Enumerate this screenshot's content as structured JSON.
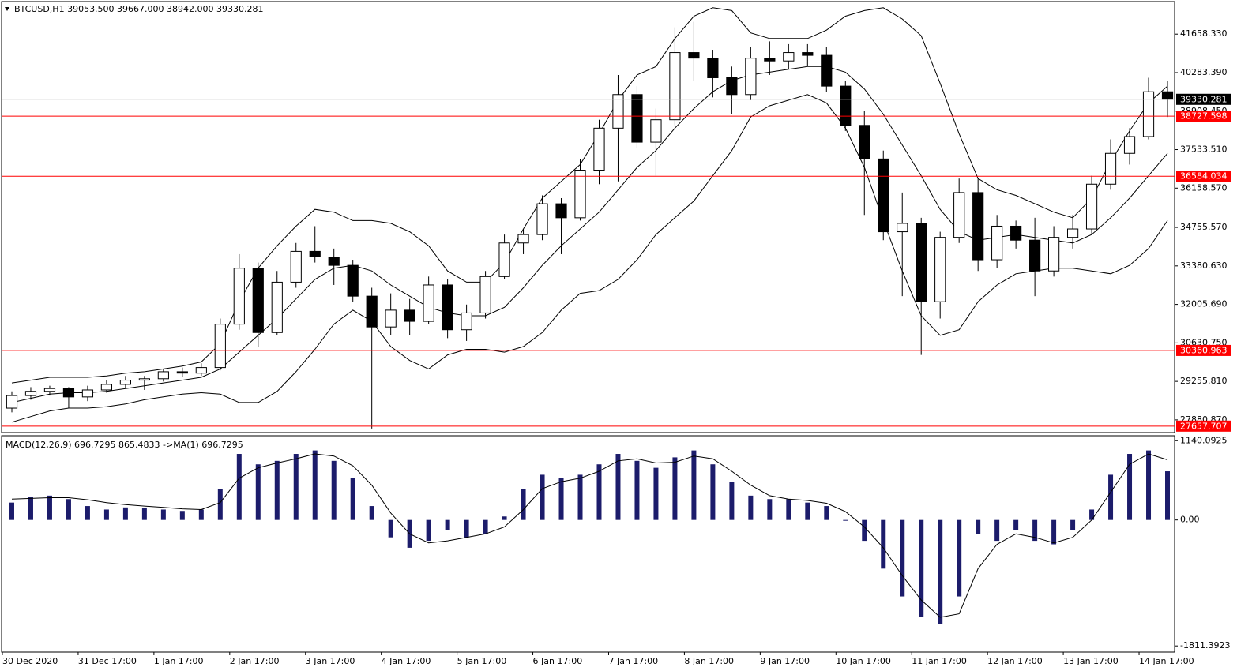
{
  "chart_data": [
    {
      "type": "candlestick",
      "title": "BTCUSD,H1  39053.500 39667.000 38942.000 39330.281",
      "up_color": "#ffffff",
      "down_color": "#000000",
      "x": [
        3,
        9,
        15,
        21,
        27,
        33,
        39,
        45,
        51,
        57,
        63,
        69,
        75,
        81,
        87,
        93,
        99,
        105,
        111,
        117,
        123,
        129,
        135,
        141,
        147,
        153,
        159,
        165,
        171,
        177,
        183,
        189,
        195,
        201,
        207,
        213,
        219,
        225,
        231,
        237,
        243,
        249,
        255,
        261,
        267,
        273,
        279,
        285,
        291,
        297,
        303,
        309,
        315,
        321,
        327,
        333,
        339,
        345,
        351,
        357,
        363,
        369
      ],
      "open": [
        28300,
        28750,
        28900,
        29000,
        28700,
        28950,
        29150,
        29300,
        29350,
        29600,
        29550,
        29750,
        31300,
        33300,
        31000,
        32800,
        33900,
        33700,
        33400,
        32300,
        31200,
        31800,
        31400,
        32700,
        31100,
        31700,
        33000,
        34200,
        34500,
        35600,
        35100,
        36800,
        38300,
        39500,
        37800,
        38600,
        41000,
        40800,
        40100,
        39500,
        40800,
        40700,
        41000,
        40900,
        39800,
        38400,
        37200,
        34600,
        34900,
        32100,
        34400,
        36000,
        33600,
        34800,
        34300,
        33200,
        34400,
        34700,
        36300,
        37400,
        38000,
        39600
      ],
      "high": [
        28900,
        29050,
        29100,
        29050,
        29100,
        29300,
        29450,
        29450,
        29700,
        29750,
        29900,
        31500,
        33800,
        33500,
        33200,
        34200,
        34800,
        34000,
        33600,
        32600,
        32400,
        32200,
        33000,
        32900,
        32000,
        33200,
        34500,
        34700,
        35900,
        35800,
        37200,
        38600,
        40200,
        39800,
        39000,
        41900,
        42100,
        41100,
        40500,
        41200,
        41400,
        41300,
        41300,
        41200,
        40000,
        38900,
        37500,
        36000,
        35100,
        34600,
        36500,
        36500,
        35200,
        35000,
        35100,
        34800,
        35200,
        36600,
        37900,
        38300,
        40100,
        40000
      ],
      "low": [
        28150,
        28600,
        28750,
        28300,
        28550,
        28850,
        29000,
        28950,
        29250,
        29400,
        29450,
        29650,
        31100,
        30500,
        30900,
        32600,
        33500,
        32700,
        32100,
        27570,
        30900,
        30900,
        31300,
        30800,
        30700,
        31500,
        32900,
        33800,
        34300,
        33800,
        35000,
        36300,
        36400,
        37600,
        36600,
        38400,
        40000,
        39400,
        38800,
        39300,
        40200,
        40400,
        40500,
        39600,
        38200,
        35200,
        34300,
        32300,
        30200,
        31500,
        34200,
        33200,
        33300,
        34000,
        32300,
        33000,
        34000,
        34500,
        36100,
        37000,
        37900,
        38700
      ],
      "close": [
        28750,
        28900,
        29000,
        28700,
        28950,
        29150,
        29300,
        29350,
        29600,
        29550,
        29750,
        31300,
        33300,
        31000,
        32800,
        33900,
        33700,
        33400,
        32300,
        31200,
        31800,
        31400,
        32700,
        31100,
        31700,
        33000,
        34200,
        34500,
        35600,
        35100,
        36800,
        38300,
        39500,
        37800,
        38600,
        41000,
        40800,
        40100,
        39500,
        40800,
        40700,
        41000,
        40900,
        39800,
        38400,
        37200,
        34600,
        34900,
        32100,
        34400,
        36000,
        33600,
        34800,
        34300,
        33200,
        34400,
        34700,
        36300,
        37400,
        38000,
        39600,
        39330
      ],
      "series": [
        {
          "color": "#000000",
          "values": [
            29200,
            29300,
            29400,
            29400,
            29400,
            29450,
            29550,
            29600,
            29700,
            29800,
            29950,
            30600,
            32100,
            33300,
            34100,
            34800,
            35400,
            35300,
            35000,
            35000,
            34900,
            34600,
            34100,
            33200,
            32800,
            32800,
            33500,
            34700,
            35800,
            36400,
            37000,
            38100,
            39300,
            40200,
            40500,
            41500,
            42300,
            42600,
            42500,
            41700,
            41500,
            41500,
            41500,
            41800,
            42300,
            42500,
            42600,
            42200,
            41600,
            39900,
            38100,
            36500,
            36100,
            35900,
            35600,
            35300,
            35100,
            35800,
            37100,
            38200,
            39200,
            39800
          ]
        },
        {
          "color": "#000000",
          "values": [
            28500,
            28650,
            28800,
            28850,
            28850,
            28900,
            29000,
            29100,
            29200,
            29300,
            29400,
            29700,
            30300,
            30900,
            31500,
            32200,
            32900,
            33300,
            33400,
            33200,
            32700,
            32300,
            31900,
            31700,
            31600,
            31600,
            31900,
            32600,
            33400,
            34100,
            34700,
            35300,
            36100,
            36900,
            37500,
            38300,
            39000,
            39600,
            40000,
            40200,
            40300,
            40400,
            40500,
            40500,
            40300,
            39700,
            38800,
            37700,
            36600,
            35400,
            34600,
            34300,
            34400,
            34500,
            34400,
            34300,
            34200,
            34500,
            35100,
            35800,
            36600,
            37400
          ]
        },
        {
          "color": "#000000",
          "values": [
            27800,
            28000,
            28200,
            28300,
            28300,
            28350,
            28450,
            28600,
            28700,
            28800,
            28850,
            28800,
            28500,
            28500,
            28900,
            29600,
            30400,
            31300,
            31800,
            31400,
            30500,
            30000,
            29700,
            30200,
            30400,
            30400,
            30300,
            30500,
            31000,
            31800,
            32400,
            32500,
            32900,
            33600,
            34500,
            35100,
            35700,
            36600,
            37500,
            38700,
            39100,
            39300,
            39500,
            39200,
            38300,
            36900,
            35000,
            33200,
            31600,
            30900,
            31100,
            32100,
            32700,
            33100,
            33200,
            33300,
            33300,
            33200,
            33100,
            33400,
            34000,
            35000
          ]
        }
      ],
      "xlim": [
        0,
        371
      ],
      "ylim": [
        27427,
        42792
      ],
      "yticks": [
        {
          "value": 41658.33,
          "label": "41658.330"
        },
        {
          "value": 40283.39,
          "label": "40283.390"
        },
        {
          "value": 38908.45,
          "label": "38908.450"
        },
        {
          "value": 37533.51,
          "label": "37533.510"
        },
        {
          "value": 36158.57,
          "label": "36158.570"
        },
        {
          "value": 34755.57,
          "label": "34755.570"
        },
        {
          "value": 33380.63,
          "label": "33380.630"
        },
        {
          "value": 32005.69,
          "label": "32005.690"
        },
        {
          "value": 30630.75,
          "label": "30630.750"
        },
        {
          "value": 29255.81,
          "label": "29255.810"
        },
        {
          "value": 27880.87,
          "label": "27880.870"
        }
      ],
      "levels": [
        {
          "value": 38727.598,
          "color": "#ff0000"
        },
        {
          "value": 36584.034,
          "color": "#ff0000"
        },
        {
          "value": 30360.963,
          "color": "#ff0000"
        },
        {
          "value": 27657.707,
          "color": "#ff0000"
        }
      ],
      "last": {
        "value": 39330.281,
        "color": "#c0c0c0"
      }
    },
    {
      "type": "macd",
      "title": "MACD(12,26,9) 696.7295 865.4833  ->MA(1) 696.7295",
      "x": [
        3,
        9,
        15,
        21,
        27,
        33,
        39,
        45,
        51,
        57,
        63,
        69,
        75,
        81,
        87,
        93,
        99,
        105,
        111,
        117,
        123,
        129,
        135,
        141,
        147,
        153,
        159,
        165,
        171,
        177,
        183,
        189,
        195,
        201,
        207,
        213,
        219,
        225,
        231,
        237,
        243,
        249,
        255,
        261,
        267,
        273,
        279,
        285,
        291,
        297,
        303,
        309,
        315,
        321,
        327,
        333,
        339,
        345,
        351,
        357,
        363,
        369
      ],
      "series": [
        {
          "color": "#1c1c6b",
          "values": [
            250,
            330,
            350,
            300,
            200,
            150,
            180,
            170,
            150,
            130,
            150,
            450,
            950,
            800,
            850,
            950,
            1000,
            850,
            600,
            200,
            -250,
            -400,
            -300,
            -150,
            -250,
            -200,
            50,
            450,
            650,
            600,
            650,
            800,
            950,
            850,
            750,
            900,
            1000,
            800,
            550,
            350,
            300,
            300,
            250,
            200,
            0,
            -300,
            -700,
            -1100,
            -1400,
            -1500,
            -1100,
            -200,
            -300,
            -150,
            -300,
            -350,
            -150,
            150,
            650,
            950,
            1000,
            700
          ]
        },
        {
          "color": "#000000",
          "values": [
            300,
            310,
            320,
            320,
            290,
            250,
            220,
            200,
            180,
            160,
            150,
            250,
            600,
            750,
            820,
            880,
            950,
            920,
            780,
            500,
            100,
            -200,
            -330,
            -300,
            -250,
            -200,
            -100,
            150,
            450,
            550,
            600,
            700,
            850,
            880,
            820,
            830,
            920,
            880,
            700,
            500,
            350,
            300,
            280,
            240,
            120,
            -100,
            -400,
            -800,
            -1150,
            -1400,
            -1350,
            -700,
            -350,
            -200,
            -250,
            -330,
            -250,
            0,
            400,
            800,
            950,
            865
          ]
        }
      ],
      "xlim": [
        0,
        371
      ],
      "ylim": [
        -1900,
        1200
      ],
      "yticks": [
        1140.0925,
        {
          "value": 0,
          "label": "0.00"
        },
        -1811.3923
      ],
      "xticks": [
        {
          "value": 0,
          "label": "30 Dec 2020"
        },
        {
          "value": 24,
          "label": "31 Dec 17:00"
        },
        {
          "value": 48,
          "label": "1 Jan 17:00"
        },
        {
          "value": 72,
          "label": "2 Jan 17:00"
        },
        {
          "value": 96,
          "label": "3 Jan 17:00"
        },
        {
          "value": 120,
          "label": "4 Jan 17:00"
        },
        {
          "value": 144,
          "label": "5 Jan 17:00"
        },
        {
          "value": 168,
          "label": "6 Jan 17:00"
        },
        {
          "value": 192,
          "label": "7 Jan 17:00"
        },
        {
          "value": 216,
          "label": "8 Jan 17:00"
        },
        {
          "value": 240,
          "label": "9 Jan 17:00"
        },
        {
          "value": 264,
          "label": "10 Jan 17:00"
        },
        {
          "value": 288,
          "label": "11 Jan 17:00"
        },
        {
          "value": 312,
          "label": "12 Jan 17:00"
        },
        {
          "value": 336,
          "label": "13 Jan 17:00"
        },
        {
          "value": 360,
          "label": "14 Jan 17:00"
        }
      ]
    }
  ]
}
